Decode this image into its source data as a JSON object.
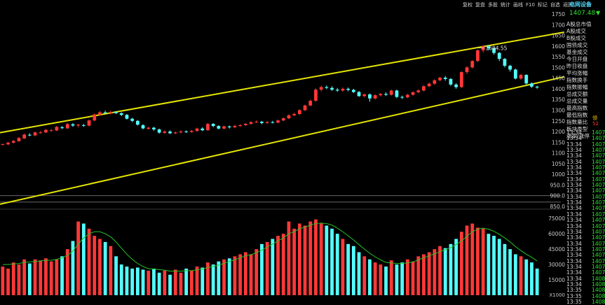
{
  "toolbar": {
    "items": [
      "复权",
      "复盘",
      "多股",
      "统计",
      "画线",
      "F10",
      "标记",
      "自选",
      "返回"
    ]
  },
  "stock": {
    "title": "电网设备",
    "price": "1407.48",
    "arrow": "▼"
  },
  "info_panel": {
    "items": [
      "A股总市值",
      "A股成交",
      "B股成交",
      "国债成交",
      "基金成交",
      "今日开盘",
      "昨日收盘",
      "平均涨幅",
      "指数换手",
      "指数振幅",
      "总成交额",
      "总成交量",
      "最高指数",
      "最低指数",
      "指数量比",
      "板块类型",
      "涨家/涨停"
    ]
  },
  "side": {
    "top_label": "领",
    "second_label": "52"
  },
  "tick_list": {
    "times": [
      "13:34",
      "13:34",
      "13:34",
      "13:34",
      "13:34",
      "13:34",
      "13:34",
      "13:34",
      "13:34",
      "13:34",
      "13:34",
      "13:34",
      "13:34",
      "13:34",
      "13:34",
      "13:34",
      "13:34",
      "13:34",
      "13:34",
      "13:34",
      "13:34",
      "13:34",
      "13:34",
      "13:34",
      "13:34",
      "13:34",
      "13:34",
      "13:35",
      "13:35",
      "13:35"
    ],
    "values": [
      "1407",
      "1407",
      "1407",
      "1407",
      "1407",
      "1407",
      "1407",
      "1407",
      "1407",
      "1407",
      "1407",
      "1407",
      "1407",
      "1407",
      "1407",
      "1407",
      "1407",
      "1407",
      "1407",
      "1407",
      "1407",
      "1407",
      "1407",
      "1407",
      "1407",
      "1408",
      "1408",
      "1408",
      "1408",
      "1408"
    ]
  },
  "chart_data": {
    "type": "candlestick",
    "price_axis": {
      "ylim": [
        850,
        1750
      ],
      "ticks": [
        "1750",
        "1700",
        "1650",
        "1600",
        "1550",
        "1500",
        "1450",
        "1400",
        "1350",
        "1300",
        "1250",
        "1200",
        "1150",
        "1100",
        "1050",
        "1000",
        "950.0",
        "900.0",
        "850.0"
      ],
      "reference_lines": [
        900,
        870
      ]
    },
    "volume_axis": {
      "ylim": [
        0,
        82000
      ],
      "ticks": [
        "75000",
        "60000",
        "45000",
        "30000",
        "15000"
      ],
      "bottom_label": "X1000"
    },
    "annotation": {
      "label": "1604.55",
      "index": 88,
      "value": 1604.55
    },
    "trend_lines": [
      {
        "from": [
          0,
          1195
        ],
        "to": [
          104,
          1665
        ],
        "color": "#e6e600"
      },
      {
        "from": [
          0,
          860
        ],
        "to": [
          104,
          1456
        ],
        "color": "#e6e600"
      }
    ],
    "volume_ma_color": "#22c522",
    "up_color": "#ff3838",
    "down_color": "#54ffff",
    "candles": [
      [
        1138,
        1142,
        1135,
        1132
      ],
      [
        1140,
        1148,
        1152,
        1137
      ],
      [
        1148,
        1156,
        1160,
        1144
      ],
      [
        1155,
        1170,
        1174,
        1152
      ],
      [
        1168,
        1186,
        1190,
        1165
      ],
      [
        1185,
        1182,
        1192,
        1178
      ],
      [
        1182,
        1196,
        1200,
        1178
      ],
      [
        1196,
        1196,
        1202,
        1190
      ],
      [
        1196,
        1208,
        1212,
        1193
      ],
      [
        1206,
        1206,
        1212,
        1200
      ],
      [
        1205,
        1222,
        1226,
        1202
      ],
      [
        1220,
        1216,
        1226,
        1212
      ],
      [
        1215,
        1235,
        1240,
        1212
      ],
      [
        1234,
        1228,
        1240,
        1222
      ],
      [
        1228,
        1232,
        1236,
        1220
      ],
      [
        1230,
        1228,
        1236,
        1222
      ],
      [
        1228,
        1252,
        1256,
        1224
      ],
      [
        1252,
        1280,
        1284,
        1248
      ],
      [
        1278,
        1290,
        1296,
        1274
      ],
      [
        1290,
        1286,
        1298,
        1282
      ],
      [
        1286,
        1292,
        1298,
        1280
      ],
      [
        1292,
        1286,
        1296,
        1282
      ],
      [
        1286,
        1278,
        1290,
        1272
      ],
      [
        1278,
        1260,
        1282,
        1256
      ],
      [
        1260,
        1250,
        1264,
        1244
      ],
      [
        1250,
        1232,
        1254,
        1228
      ],
      [
        1230,
        1215,
        1234,
        1210
      ],
      [
        1213,
        1218,
        1222,
        1208
      ],
      [
        1218,
        1210,
        1222,
        1204
      ],
      [
        1210,
        1195,
        1214,
        1190
      ],
      [
        1194,
        1200,
        1206,
        1190
      ],
      [
        1200,
        1192,
        1206,
        1188
      ],
      [
        1192,
        1196,
        1200,
        1188
      ],
      [
        1196,
        1200,
        1206,
        1192
      ],
      [
        1200,
        1198,
        1206,
        1194
      ],
      [
        1198,
        1203,
        1208,
        1194
      ],
      [
        1203,
        1214,
        1218,
        1198
      ],
      [
        1214,
        1206,
        1220,
        1202
      ],
      [
        1206,
        1236,
        1240,
        1204
      ],
      [
        1236,
        1226,
        1240,
        1220
      ],
      [
        1226,
        1214,
        1230,
        1210
      ],
      [
        1214,
        1224,
        1228,
        1210
      ],
      [
        1224,
        1220,
        1228,
        1214
      ],
      [
        1220,
        1226,
        1232,
        1216
      ],
      [
        1226,
        1230,
        1234,
        1222
      ],
      [
        1230,
        1236,
        1240,
        1226
      ],
      [
        1236,
        1244,
        1248,
        1232
      ],
      [
        1244,
        1246,
        1252,
        1240
      ],
      [
        1246,
        1240,
        1250,
        1234
      ],
      [
        1240,
        1244,
        1250,
        1236
      ],
      [
        1244,
        1242,
        1250,
        1238
      ],
      [
        1242,
        1252,
        1256,
        1238
      ],
      [
        1252,
        1262,
        1266,
        1248
      ],
      [
        1262,
        1276,
        1280,
        1258
      ],
      [
        1276,
        1282,
        1288,
        1272
      ],
      [
        1282,
        1300,
        1304,
        1278
      ],
      [
        1300,
        1322,
        1326,
        1296
      ],
      [
        1322,
        1344,
        1350,
        1318
      ],
      [
        1344,
        1396,
        1402,
        1340
      ],
      [
        1396,
        1408,
        1414,
        1388
      ],
      [
        1408,
        1404,
        1416,
        1398
      ],
      [
        1404,
        1396,
        1412,
        1390
      ],
      [
        1396,
        1392,
        1404,
        1386
      ],
      [
        1392,
        1400,
        1406,
        1386
      ],
      [
        1400,
        1395,
        1406,
        1388
      ],
      [
        1395,
        1385,
        1400,
        1380
      ],
      [
        1385,
        1366,
        1390,
        1362
      ],
      [
        1366,
        1374,
        1378,
        1360
      ],
      [
        1374,
        1355,
        1378,
        1340
      ],
      [
        1355,
        1370,
        1374,
        1350
      ],
      [
        1370,
        1376,
        1380,
        1364
      ],
      [
        1376,
        1372,
        1384,
        1366
      ],
      [
        1372,
        1392,
        1396,
        1368
      ],
      [
        1392,
        1362,
        1396,
        1356
      ],
      [
        1362,
        1360,
        1368,
        1352
      ],
      [
        1360,
        1372,
        1376,
        1356
      ],
      [
        1372,
        1384,
        1388,
        1368
      ],
      [
        1384,
        1392,
        1398,
        1380
      ],
      [
        1392,
        1412,
        1416,
        1388
      ],
      [
        1412,
        1424,
        1430,
        1408
      ],
      [
        1424,
        1440,
        1444,
        1418
      ],
      [
        1440,
        1452,
        1456,
        1436
      ],
      [
        1452,
        1446,
        1460,
        1438
      ],
      [
        1446,
        1420,
        1450,
        1414
      ],
      [
        1420,
        1408,
        1426,
        1400
      ],
      [
        1408,
        1478,
        1482,
        1404
      ],
      [
        1478,
        1500,
        1506,
        1470
      ],
      [
        1500,
        1530,
        1534,
        1496
      ],
      [
        1530,
        1580,
        1584,
        1526
      ],
      [
        1580,
        1598,
        1604,
        1570
      ],
      [
        1598,
        1590,
        1604,
        1580
      ],
      [
        1590,
        1568,
        1594,
        1560
      ],
      [
        1568,
        1540,
        1572,
        1530
      ],
      [
        1540,
        1508,
        1544,
        1500
      ],
      [
        1508,
        1490,
        1512,
        1480
      ],
      [
        1490,
        1448,
        1494,
        1444
      ],
      [
        1448,
        1465,
        1470,
        1442
      ],
      [
        1465,
        1425,
        1468,
        1420
      ],
      [
        1425,
        1410,
        1430,
        1404
      ],
      [
        1410,
        1406,
        1414,
        1400
      ]
    ],
    "volumes": [
      28000,
      26000,
      32000,
      30000,
      35000,
      31000,
      35000,
      34000,
      36000,
      33000,
      35000,
      38000,
      45000,
      53000,
      72000,
      70000,
      65000,
      58000,
      55000,
      52000,
      48000,
      38000,
      30000,
      28000,
      26000,
      27000,
      25000,
      24000,
      26000,
      22000,
      24000,
      20000,
      25000,
      22000,
      26000,
      24000,
      28000,
      27000,
      32000,
      30000,
      33000,
      35000,
      36000,
      38000,
      40000,
      42000,
      40000,
      45000,
      50000,
      52000,
      55000,
      58000,
      60000,
      72000,
      65000,
      70000,
      68000,
      72000,
      74000,
      70000,
      68000,
      65000,
      60000,
      55000,
      50000,
      48000,
      42000,
      38000,
      35000,
      32000,
      30000,
      28000,
      34000,
      30000,
      32000,
      35000,
      33000,
      38000,
      40000,
      42000,
      45000,
      48000,
      46000,
      50000,
      55000,
      62000,
      68000,
      70000,
      66000,
      65000,
      60000,
      58000,
      55000,
      50000,
      45000,
      40000,
      38000,
      35000,
      32000,
      26000
    ],
    "volume_ma": [
      30000,
      30000,
      30500,
      31000,
      32000,
      32500,
      33000,
      33500,
      34000,
      34200,
      35000,
      36500,
      39000,
      43000,
      50000,
      56000,
      60000,
      62000,
      62000,
      60000,
      57000,
      52000,
      46000,
      40000,
      35000,
      31000,
      28000,
      26000,
      25500,
      25000,
      24500,
      23500,
      23500,
      23500,
      24000,
      24000,
      24800,
      25500,
      27000,
      28000,
      29500,
      31000,
      33000,
      34500,
      36500,
      38500,
      39500,
      41500,
      44000,
      47000,
      50000,
      53000,
      56000,
      60000,
      62000,
      65000,
      66500,
      68500,
      70000,
      70500,
      70000,
      68500,
      65500,
      62000,
      58000,
      54000,
      49500,
      45000,
      41000,
      37500,
      34500,
      32000,
      31500,
      31000,
      31000,
      31500,
      32500,
      34500,
      36500,
      38500,
      40500,
      42500,
      44500,
      46500,
      49500,
      53000,
      57500,
      62000,
      64500,
      65500,
      64500,
      62500,
      59500,
      56000,
      52000,
      47500,
      43500,
      40000,
      37000,
      33500
    ]
  }
}
